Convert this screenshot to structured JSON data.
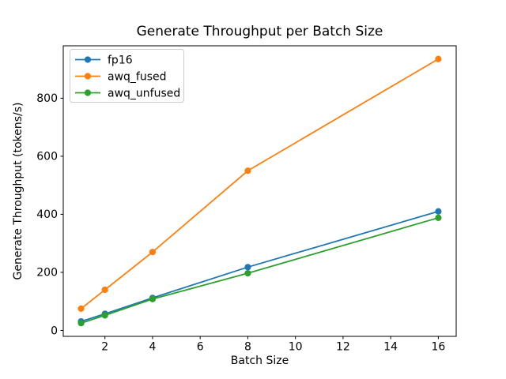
{
  "chart_data": {
    "type": "line",
    "title": "Generate Throughput per Batch Size",
    "xlabel": "Batch Size",
    "ylabel": "Generate Throughput (tokens/s)",
    "x": [
      1,
      2,
      4,
      8,
      16
    ],
    "series": [
      {
        "name": "fp16",
        "color": "#1f77b4",
        "values": [
          31,
          57,
          112,
          218,
          410
        ]
      },
      {
        "name": "awq_fused",
        "color": "#ff7f0e",
        "values": [
          75,
          140,
          270,
          550,
          935
        ]
      },
      {
        "name": "awq_unfused",
        "color": "#2ca02c",
        "values": [
          25,
          52,
          108,
          197,
          388
        ]
      }
    ],
    "xticks": [
      2,
      4,
      6,
      8,
      10,
      12,
      14,
      16
    ],
    "yticks": [
      0,
      200,
      400,
      600,
      800
    ],
    "xlim": [
      0.25,
      16.75
    ],
    "ylim": [
      -20.5,
      980.5
    ],
    "marker": "o",
    "grid": false,
    "legend_position": "upper left",
    "colors": {
      "spine": "#000000",
      "background": "#ffffff",
      "legend_border": "#cccccc"
    }
  }
}
